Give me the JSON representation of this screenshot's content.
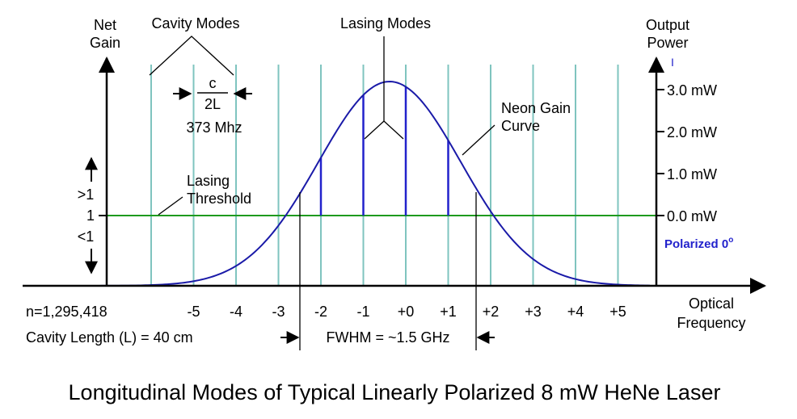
{
  "labels": {
    "net_gain_1": "Net",
    "net_gain_2": "Gain",
    "cavity_modes": "Cavity Modes",
    "lasing_modes": "Lasing Modes",
    "output_power_1": "Output",
    "output_power_2": "Power",
    "c_numerator": "c",
    "two_l_denominator": "2L",
    "spacing_freq": "373 Mhz",
    "neon_gain_1": "Neon Gain",
    "neon_gain_2": "Curve",
    "lasing_threshold_1": "Lasing",
    "lasing_threshold_2": "Threshold",
    "gain_gt1": ">1",
    "gain_1": "1",
    "gain_lt1": "<1",
    "polarized": "Polarized 0",
    "polarized_degree": "o",
    "n_value": "n=1,295,418",
    "cavity_length": "Cavity Length (L) = 40 cm",
    "fwhm": "FWHM = ~1.5 GHz",
    "optical_1": "Optical",
    "optical_2": "Frequency",
    "caption": "Longitudinal Modes of Typical Linearly Polarized 8 mW HeNe Laser",
    "power_unit_marker": "I"
  },
  "mode_labels": [
    "-5",
    "-4",
    "-3",
    "-2",
    "-1",
    "+0",
    "+1",
    "+2",
    "+3",
    "+4",
    "+5"
  ],
  "power_labels": [
    "3.0 mW",
    "2.0 mW",
    "1.0 mW",
    "0.0 mW"
  ],
  "lasing_mode_indices": [
    -2,
    -1,
    0,
    1
  ],
  "colors": {
    "gain_curve": "#1a1aa8",
    "cavity_mode": "#7fc4bf",
    "lasing_mode": "#2222cc",
    "threshold": "#1e9a1e",
    "polarized_text": "#2222cc",
    "axis": "#000000"
  }
}
